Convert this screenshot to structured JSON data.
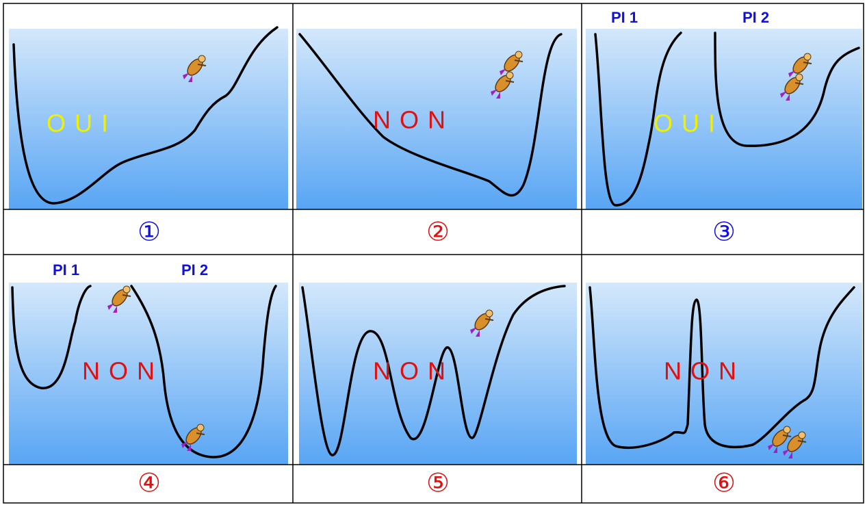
{
  "panels": [
    {
      "number": "①",
      "verdict": "OUI"
    },
    {
      "number": "②",
      "verdict": "NON"
    },
    {
      "number": "③",
      "verdict": "OUI",
      "labels": [
        "PI 1",
        "PI 2"
      ]
    },
    {
      "number": "④",
      "verdict": "NON",
      "labels": [
        "PI 1",
        "PI 2"
      ]
    },
    {
      "number": "⑤",
      "verdict": "NON"
    },
    {
      "number": "⑥",
      "verdict": "NON"
    }
  ]
}
